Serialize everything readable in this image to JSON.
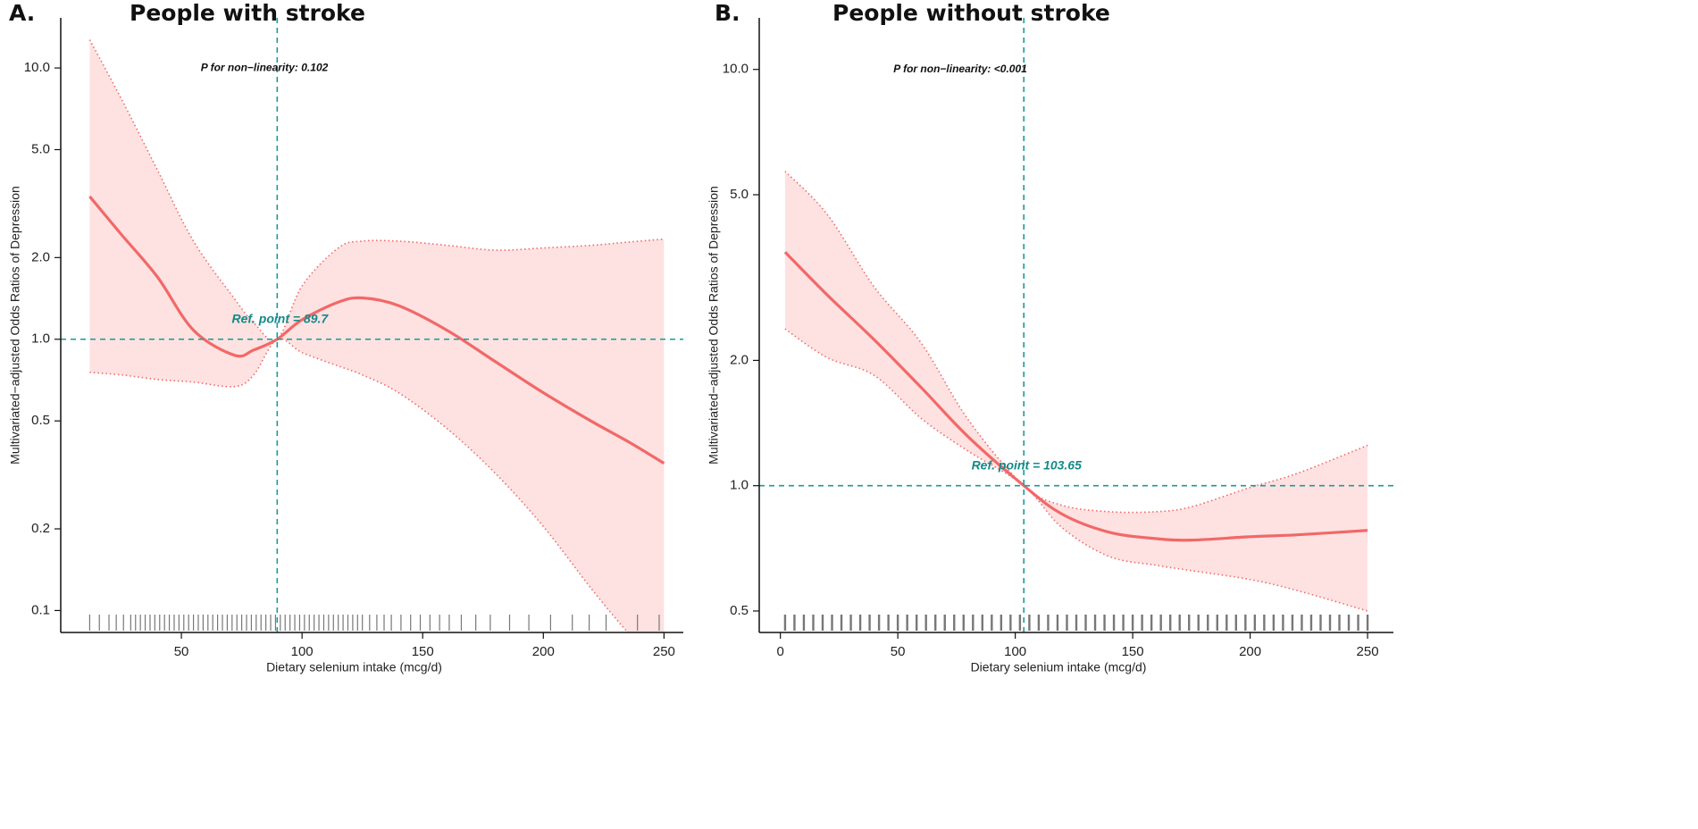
{
  "chart_data": [
    {
      "type": "line",
      "panel_label": "A.",
      "title": "People with stroke",
      "x_label": "Dietary selenium intake (mcg/d)",
      "y_label": "Multivariated−adjusted Odds Ratios of Depression",
      "annotation": "P for non−linearity: 0.102",
      "ref_point": {
        "value": 89.7,
        "label": "Ref. point = 89.7"
      },
      "hline": 1,
      "yscale": "log",
      "xlim": [
        0,
        258
      ],
      "ylim": [
        0.083,
        15.3
      ],
      "xticks": [
        50,
        100,
        150,
        200,
        250
      ],
      "yticks": [
        {
          "value": 10,
          "label": "10.0"
        },
        {
          "value": 5,
          "label": "5.0"
        },
        {
          "value": 2,
          "label": "2.0"
        },
        {
          "value": 1,
          "label": "1.0"
        },
        0.5,
        0.2,
        0.1
      ],
      "color": "#f26868",
      "band_color": "#fde2e1",
      "ref_color": "#1a9a9a",
      "x": [
        12,
        25,
        40,
        55,
        72,
        80,
        89.7,
        100,
        115,
        125,
        140,
        160,
        180,
        200,
        220,
        235,
        250
      ],
      "values": [
        3.36,
        2.44,
        1.7,
        1.08,
        0.873,
        0.913,
        1.0,
        1.18,
        1.37,
        1.42,
        1.33,
        1.08,
        0.828,
        0.635,
        0.498,
        0.42,
        0.349
      ],
      "upper": [
        12.7,
        7.73,
        4.22,
        2.3,
        1.41,
        1.15,
        1.0,
        1.57,
        2.17,
        2.3,
        2.3,
        2.22,
        2.13,
        2.17,
        2.22,
        2.28,
        2.34
      ],
      "lower": [
        0.755,
        0.739,
        0.711,
        0.695,
        0.669,
        0.739,
        1.0,
        0.893,
        0.797,
        0.739,
        0.635,
        0.469,
        0.321,
        0.204,
        0.12,
        0.083,
        0.06
      ],
      "rug": [
        12,
        16,
        20,
        23,
        26,
        29,
        31,
        33,
        35,
        37,
        39,
        41,
        43,
        45,
        47,
        49,
        51,
        53,
        55,
        57,
        59,
        61,
        63,
        65,
        67,
        69,
        71,
        73,
        75,
        77,
        79,
        81,
        83,
        85,
        87,
        89,
        91,
        93,
        95,
        97,
        99,
        101,
        103,
        105,
        107,
        109,
        111,
        113,
        115,
        117,
        119,
        121,
        123,
        125,
        128,
        131,
        134,
        137,
        141,
        145,
        149,
        153,
        157,
        161,
        166,
        172,
        178,
        186,
        194,
        203,
        212,
        219,
        226,
        239,
        248
      ]
    },
    {
      "type": "line",
      "panel_label": "B.",
      "title": "People without stroke",
      "x_label": "Dietary selenium intake (mcg/d)",
      "y_label": "Multivariated−adjusted Odds Ratios of Depression",
      "annotation": "P for non−linearity: <0.001",
      "ref_point": {
        "value": 103.65,
        "label": "Ref. point = 103.65"
      },
      "hline": 1,
      "yscale": "log",
      "xlim": [
        -9,
        261
      ],
      "ylim": [
        0.444,
        13.3
      ],
      "xticks": [
        0,
        50,
        100,
        150,
        200,
        250
      ],
      "yticks": [
        {
          "value": 10,
          "label": "10.0"
        },
        {
          "value": 5,
          "label": "5.0"
        },
        {
          "value": 2,
          "label": "2.0"
        },
        {
          "value": 1,
          "label": "1.0"
        },
        0.5
      ],
      "color": "#f26868",
      "band_color": "#fde2e1",
      "ref_color": "#1a9a9a",
      "x": [
        2,
        20,
        40,
        60,
        80,
        103.65,
        120,
        140,
        160,
        175,
        200,
        220,
        250
      ],
      "values": [
        3.64,
        2.87,
        2.24,
        1.72,
        1.31,
        1.0,
        0.854,
        0.773,
        0.746,
        0.74,
        0.754,
        0.762,
        0.781
      ],
      "upper": [
        5.69,
        4.48,
        3.0,
        2.2,
        1.44,
        1.0,
        0.897,
        0.866,
        0.866,
        0.89,
        0.99,
        1.07,
        1.25
      ],
      "lower": [
        2.38,
        2.03,
        1.84,
        1.45,
        1.21,
        1.0,
        0.792,
        0.676,
        0.644,
        0.625,
        0.595,
        0.56,
        0.5
      ],
      "rug": [
        2,
        6,
        10,
        14,
        18,
        22,
        26,
        30,
        34,
        38,
        42,
        46,
        50,
        54,
        58,
        62,
        66,
        70,
        74,
        78,
        82,
        86,
        90,
        94,
        98,
        102,
        106,
        110,
        114,
        118,
        122,
        126,
        130,
        134,
        138,
        142,
        146,
        150,
        154,
        158,
        162,
        166,
        170,
        174,
        178,
        182,
        186,
        190,
        194,
        198,
        202,
        206,
        210,
        214,
        218,
        222,
        226,
        230,
        234,
        238,
        242,
        246,
        250
      ]
    }
  ]
}
